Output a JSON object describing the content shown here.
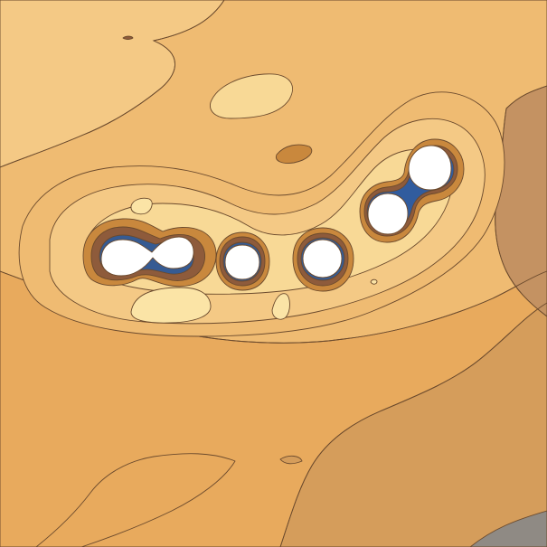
{
  "colors": {
    "level_0": "#f4c985",
    "level_1": "#efbb72",
    "level_2": "#e8aa5d",
    "level_3": "#d59d5b",
    "level_4": "#c49262",
    "level_5": "#8f8a84",
    "highlight_1": "#f8d996",
    "highlight_2": "#fbe4a6",
    "ring_1": "#c9883d",
    "ring_2": "#b27038",
    "ring_3": "#8e5b3b",
    "ring_4": "#5f5b68",
    "ring_5": "#365b93",
    "ring_6": "#315c9e",
    "hole": "#ffffff",
    "contour_line": "#6b4a2d"
  }
}
